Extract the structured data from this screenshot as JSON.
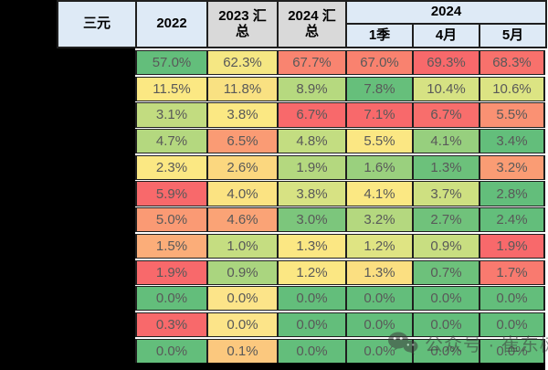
{
  "palette": {
    "border": "#1f1f1f",
    "header_blue": "#DEEAF6",
    "header_gray": "#D9D9D9",
    "cell_text": "#595959",
    "scale_low_green": "#63BE7B",
    "scale_mid_yellow": "#FFEB84",
    "scale_high_red": "#F8696B"
  },
  "table": {
    "corner_label": "三元",
    "col_headers": [
      {
        "label": "2022",
        "bg": "#DEEAF6"
      },
      {
        "label": "2023 汇\n总",
        "bg": "#D9D9D9"
      },
      {
        "label": "2024 汇\n总",
        "bg": "#D9D9D9"
      }
    ],
    "group_header": {
      "label": "2024",
      "bg": "#DEEAF6",
      "sub": [
        "1季",
        "4月",
        "5月"
      ]
    },
    "blackout_regions": [
      "left-margin",
      "row-label-column",
      "bottom-strip"
    ],
    "rows": [
      {
        "cells": [
          {
            "v": "57.0%",
            "bg": "#63BE7B"
          },
          {
            "v": "62.3%",
            "bg": "#F5E783"
          },
          {
            "v": "67.7%",
            "bg": "#F98470"
          },
          {
            "v": "67.0%",
            "bg": "#F9826F"
          },
          {
            "v": "69.3%",
            "bg": "#F8696B"
          },
          {
            "v": "68.3%",
            "bg": "#F8716C"
          }
        ]
      },
      {
        "cells": [
          {
            "v": "11.5%",
            "bg": "#FBE883"
          },
          {
            "v": "11.8%",
            "bg": "#F9E182"
          },
          {
            "v": "8.9%",
            "bg": "#B6D97F"
          },
          {
            "v": "7.8%",
            "bg": "#66BF7B"
          },
          {
            "v": "10.4%",
            "bg": "#D6E283"
          },
          {
            "v": "10.6%",
            "bg": "#DCE483"
          }
        ]
      },
      {
        "cells": [
          {
            "v": "3.1%",
            "bg": "#C2DC80"
          },
          {
            "v": "3.8%",
            "bg": "#FBE883"
          },
          {
            "v": "6.7%",
            "bg": "#F8696B"
          },
          {
            "v": "7.1%",
            "bg": "#F8696B"
          },
          {
            "v": "6.7%",
            "bg": "#F86E6C"
          },
          {
            "v": "5.5%",
            "bg": "#FA9173"
          }
        ]
      },
      {
        "cells": [
          {
            "v": "4.7%",
            "bg": "#B4D87F"
          },
          {
            "v": "6.5%",
            "bg": "#FA9B74"
          },
          {
            "v": "4.8%",
            "bg": "#C3DD81"
          },
          {
            "v": "5.5%",
            "bg": "#FBE783"
          },
          {
            "v": "4.1%",
            "bg": "#97CF7E"
          },
          {
            "v": "3.4%",
            "bg": "#63BE7B"
          }
        ]
      },
      {
        "cells": [
          {
            "v": "2.3%",
            "bg": "#FBE883"
          },
          {
            "v": "2.6%",
            "bg": "#FBD77F"
          },
          {
            "v": "1.9%",
            "bg": "#B4D87F"
          },
          {
            "v": "1.6%",
            "bg": "#9AD07E"
          },
          {
            "v": "1.3%",
            "bg": "#6CC17B"
          },
          {
            "v": "3.2%",
            "bg": "#FA9C74"
          }
        ]
      },
      {
        "cells": [
          {
            "v": "5.9%",
            "bg": "#F8696B"
          },
          {
            "v": "4.0%",
            "bg": "#FBE382"
          },
          {
            "v": "3.8%",
            "bg": "#D7E283"
          },
          {
            "v": "4.1%",
            "bg": "#FBE883"
          },
          {
            "v": "3.7%",
            "bg": "#CEE081"
          },
          {
            "v": "2.8%",
            "bg": "#63BE7B"
          }
        ]
      },
      {
        "cells": [
          {
            "v": "5.0%",
            "bg": "#FA9A74"
          },
          {
            "v": "4.6%",
            "bg": "#FAA376"
          },
          {
            "v": "3.0%",
            "bg": "#7CC67C"
          },
          {
            "v": "3.2%",
            "bg": "#B4D87F"
          },
          {
            "v": "2.7%",
            "bg": "#70C27B"
          },
          {
            "v": "2.4%",
            "bg": "#63BE7B"
          }
        ]
      },
      {
        "cells": [
          {
            "v": "1.5%",
            "bg": "#FBAD79"
          },
          {
            "v": "1.0%",
            "bg": "#C5DD81"
          },
          {
            "v": "1.3%",
            "bg": "#FBE783"
          },
          {
            "v": "1.2%",
            "bg": "#DFE483"
          },
          {
            "v": "0.9%",
            "bg": "#C8DE81"
          },
          {
            "v": "1.9%",
            "bg": "#F8696B"
          }
        ]
      },
      {
        "cells": [
          {
            "v": "1.9%",
            "bg": "#F8696B"
          },
          {
            "v": "0.9%",
            "bg": "#AAD57F"
          },
          {
            "v": "1.2%",
            "bg": "#FBE783"
          },
          {
            "v": "1.3%",
            "bg": "#FBDF81"
          },
          {
            "v": "0.7%",
            "bg": "#6DC17B"
          },
          {
            "v": "1.7%",
            "bg": "#F97A6F"
          }
        ]
      },
      {
        "cells": [
          {
            "v": "0.0%",
            "bg": "#63BE7B"
          },
          {
            "v": "0.0%",
            "bg": "#FCE489"
          },
          {
            "v": "0.0%",
            "bg": "#63BE7B"
          },
          {
            "v": "0.0%",
            "bg": "#63BE7B"
          },
          {
            "v": "0.0%",
            "bg": "#63BE7B"
          },
          {
            "v": "0.0%",
            "bg": "#63BE7B"
          }
        ]
      },
      {
        "cells": [
          {
            "v": "0.3%",
            "bg": "#F8696B"
          },
          {
            "v": "0.0%",
            "bg": "#FCE489"
          },
          {
            "v": "0.0%",
            "bg": "#63BE7B"
          },
          {
            "v": "0.0%",
            "bg": "#63BE7B"
          },
          {
            "v": "0.0%",
            "bg": "#63BE7B"
          },
          {
            "v": "0.0%",
            "bg": "#63BE7B"
          }
        ]
      },
      {
        "cells": [
          {
            "v": "0.0%",
            "bg": "#63BE7B"
          },
          {
            "v": "0.1%",
            "bg": "#FBC87E"
          },
          {
            "v": "0.0%",
            "bg": "#63BE7B"
          },
          {
            "v": "0.0%",
            "bg": "#63BE7B"
          },
          {
            "v": "0.0%",
            "bg": "#63BE7B"
          },
          {
            "v": "0.0%",
            "bg": "#63BE7B"
          }
        ]
      }
    ]
  },
  "watermark": {
    "icon": "wechat-icon",
    "text": "公众号 · 崔东树"
  },
  "chart_data": {
    "type": "heatmap",
    "title": "三元",
    "columns": [
      "2022",
      "2023 汇总",
      "2024 汇总",
      "2024 1季",
      "2024 4月",
      "2024 5月"
    ],
    "unit": "%",
    "row_labels_visible": false,
    "rows": [
      [
        57.0,
        62.3,
        67.7,
        67.0,
        69.3,
        68.3
      ],
      [
        11.5,
        11.8,
        8.9,
        7.8,
        10.4,
        10.6
      ],
      [
        3.1,
        3.8,
        6.7,
        7.1,
        6.7,
        5.5
      ],
      [
        4.7,
        6.5,
        4.8,
        5.5,
        4.1,
        3.4
      ],
      [
        2.3,
        2.6,
        1.9,
        1.6,
        1.3,
        3.2
      ],
      [
        5.9,
        4.0,
        3.8,
        4.1,
        3.7,
        2.8
      ],
      [
        5.0,
        4.6,
        3.0,
        3.2,
        2.7,
        2.4
      ],
      [
        1.5,
        1.0,
        1.3,
        1.2,
        0.9,
        1.9
      ],
      [
        1.9,
        0.9,
        1.2,
        1.3,
        0.7,
        1.7
      ],
      [
        0.0,
        0.0,
        0.0,
        0.0,
        0.0,
        0.0
      ],
      [
        0.3,
        0.0,
        0.0,
        0.0,
        0.0,
        0.0
      ],
      [
        0.0,
        0.1,
        0.0,
        0.0,
        0.0,
        0.0
      ]
    ],
    "color_scale": {
      "low": "#63BE7B",
      "mid": "#FFEB84",
      "high": "#F8696B",
      "low_is": "green",
      "high_is": "red"
    }
  }
}
